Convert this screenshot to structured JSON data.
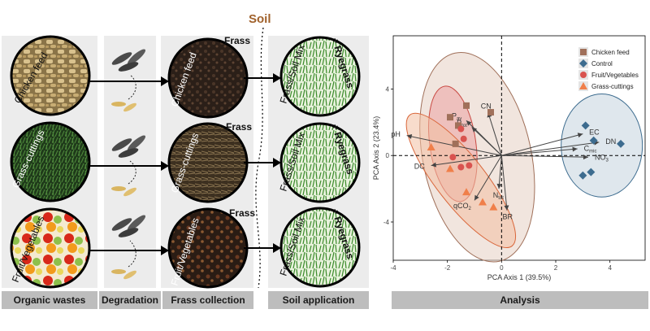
{
  "workflow": {
    "soil_label": "Soil",
    "frass_word": "Frass",
    "ryegrass_word": "+ Ryegrass",
    "mix_label": "Frass/Soil Mix",
    "wastes": [
      "Chicken feed",
      "Grass-cuttings",
      "Fruit/Vegetables"
    ],
    "frass_labels": [
      "Chicken feed",
      "Grass-cuttings",
      "Fruit/Vegetables"
    ],
    "stages": [
      "Organic wastes",
      "Degradation",
      "Frass collection",
      "Soil application",
      "Analysis"
    ]
  },
  "chart_data": {
    "type": "scatter",
    "subtype": "pca-biplot",
    "xlabel": "PCA Axis 1 (39.5%)",
    "ylabel": "PCA Axis 2 (23.4%)",
    "xlim": [
      -4,
      5.3
    ],
    "ylim": [
      -6.3,
      7.2
    ],
    "xticks": [
      -4,
      -2,
      0,
      2,
      4
    ],
    "yticks": [
      -4,
      0,
      4
    ],
    "legend_position": "top-right",
    "grid": false,
    "series": [
      {
        "name": "Chicken feed",
        "marker": "square",
        "color": "#a0705a",
        "points": [
          [
            -1.3,
            3.0
          ],
          [
            -0.4,
            2.6
          ],
          [
            -1.9,
            2.3
          ],
          [
            -1.6,
            1.8
          ],
          [
            -1.7,
            0.7
          ]
        ]
      },
      {
        "name": "Control",
        "marker": "diamond",
        "color": "#3d6c8f",
        "points": [
          [
            3.1,
            1.8
          ],
          [
            3.4,
            0.9
          ],
          [
            4.4,
            0.7
          ],
          [
            3.3,
            -1.0
          ],
          [
            3.0,
            -1.2
          ]
        ]
      },
      {
        "name": "Fruit/Vegetables",
        "marker": "circle",
        "color": "#d9534f",
        "points": [
          [
            -1.5,
            1.6
          ],
          [
            -1.4,
            1.0
          ],
          [
            -1.8,
            -0.1
          ],
          [
            -1.5,
            -0.7
          ],
          [
            -1.2,
            -0.6
          ]
        ]
      },
      {
        "name": "Grass-cuttings",
        "marker": "triangle",
        "color": "#f07f4a",
        "points": [
          [
            -2.6,
            0.5
          ],
          [
            -1.9,
            -0.8
          ],
          [
            -1.3,
            -2.2
          ],
          [
            -0.7,
            -2.8
          ],
          [
            -0.3,
            -3.1
          ]
        ]
      }
    ],
    "ellipses": [
      {
        "series": "Chicken feed",
        "cx": -0.9,
        "cy": -0.1,
        "rx": 2.0,
        "ry": 6.4,
        "rotate": -12,
        "fill": "#e6cfc2",
        "stroke": "#a0705a"
      },
      {
        "series": "Fruit/Vegetables",
        "cx": -1.8,
        "cy": 0.7,
        "rx": 0.85,
        "ry": 3.5,
        "rotate": -8,
        "fill": "#eba3a3",
        "stroke": "#c94a44"
      },
      {
        "series": "Grass-cuttings",
        "cx": -1.5,
        "cy": -1.5,
        "rx": 0.9,
        "ry": 5.0,
        "rotate": -38,
        "fill": "#f3c0a2",
        "stroke": "#d9663a"
      },
      {
        "series": "Control",
        "cx": 3.7,
        "cy": 0.6,
        "rx": 1.5,
        "ry": 3.1,
        "rotate": 0,
        "fill": "#c4d3df",
        "stroke": "#3d6c8f"
      }
    ],
    "vectors": [
      {
        "label": "CN",
        "x": -0.5,
        "y": 2.6
      },
      {
        "label": "P_av",
        "x": -1.3,
        "y": 2.1
      },
      {
        "label": "P_tot",
        "x": -1.1,
        "y": 1.7
      },
      {
        "label": "pH",
        "x": -3.5,
        "y": 1.2
      },
      {
        "label": "DC",
        "x": -2.6,
        "y": -0.6
      },
      {
        "label": "EC",
        "x": 3.0,
        "y": 1.3
      },
      {
        "label": "C_mic",
        "x": 2.8,
        "y": 0.4
      },
      {
        "label": "DN",
        "x": 3.6,
        "y": 0.8
      },
      {
        "label": "NO_3",
        "x": 3.2,
        "y": -0.1
      },
      {
        "label": "N_tot",
        "x": -0.1,
        "y": -2.0
      },
      {
        "label": "BR",
        "x": 0.2,
        "y": -3.3
      },
      {
        "label": "qCO_2",
        "x": -1.0,
        "y": -2.7
      }
    ]
  }
}
